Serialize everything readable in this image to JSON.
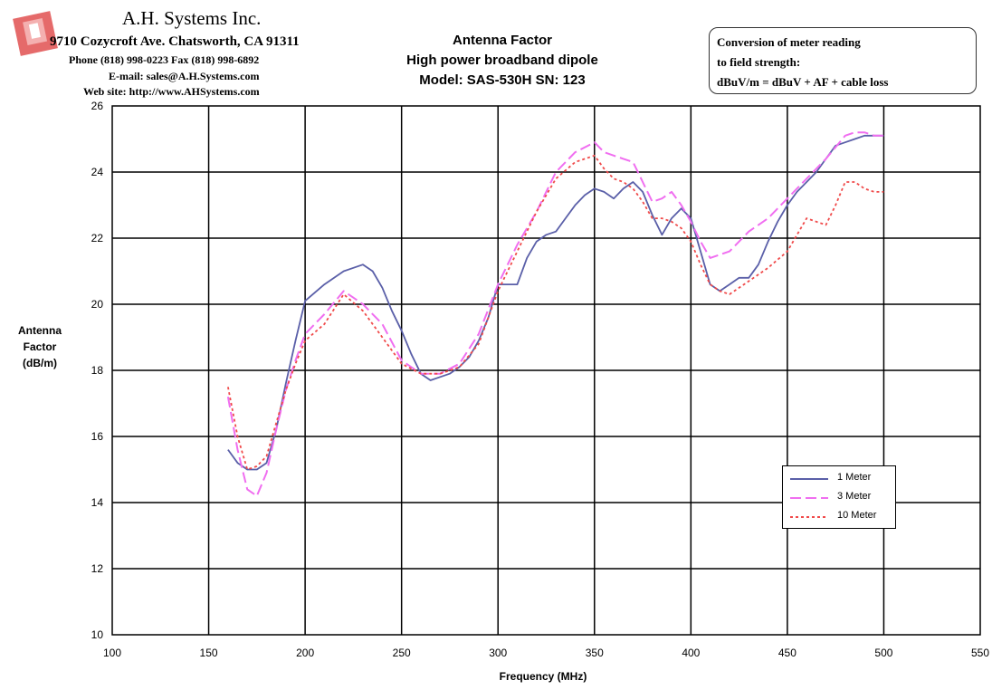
{
  "company": {
    "name": "A.H. Systems Inc.",
    "address": "9710 Cozycroft Ave. Chatsworth, CA 91311",
    "phone": "Phone (818) 998-0223 Fax (818) 998-6892",
    "email": "E-mail: sales@A.H.Systems.com",
    "web": "Web site: http://www.AHSystems.com"
  },
  "title_lines": [
    "Antenna Factor",
    "High power broadband dipole",
    "Model: SAS-530H SN: 123"
  ],
  "conversion_note": [
    "Conversion of meter reading",
    "to field strength:",
    "dBuV/m = dBuV + AF + cable loss"
  ],
  "colors": {
    "logo": "#e05050",
    "series_1m": "#5a5fa8",
    "series_3m": "#f06ef0",
    "series_10m": "#f04a4a"
  },
  "chart_data": {
    "type": "line",
    "title": "",
    "xlabel": "Frequency (MHz)",
    "ylabel": "Antenna Factor (dB/m)",
    "xlim": [
      100,
      550
    ],
    "ylim": [
      10,
      26
    ],
    "x_ticks": [
      "100",
      "150",
      "200",
      "250",
      "300",
      "350",
      "400",
      "450",
      "500",
      "550"
    ],
    "y_ticks": [
      "10",
      "12",
      "14",
      "16",
      "18",
      "20",
      "22",
      "24",
      "26"
    ],
    "grid": true,
    "legend_position": "lower-right",
    "series": [
      {
        "name": "1 Meter",
        "style": "solid",
        "x": [
          160,
          165,
          170,
          175,
          180,
          185,
          190,
          195,
          200,
          210,
          220,
          230,
          235,
          240,
          245,
          250,
          255,
          260,
          265,
          270,
          275,
          280,
          285,
          290,
          295,
          300,
          305,
          310,
          315,
          320,
          325,
          330,
          335,
          340,
          345,
          350,
          355,
          360,
          365,
          370,
          375,
          380,
          385,
          390,
          395,
          400,
          405,
          410,
          415,
          420,
          425,
          430,
          435,
          440,
          445,
          450,
          455,
          460,
          465,
          470,
          475,
          480,
          485,
          490,
          495,
          500
        ],
        "y": [
          15.6,
          15.2,
          15.0,
          15.0,
          15.2,
          16.2,
          17.6,
          18.9,
          20.1,
          20.6,
          21.0,
          21.2,
          21.0,
          20.5,
          19.8,
          19.2,
          18.5,
          17.9,
          17.7,
          17.8,
          17.9,
          18.1,
          18.4,
          18.9,
          19.6,
          20.6,
          20.6,
          20.6,
          21.4,
          21.9,
          22.1,
          22.2,
          22.6,
          23.0,
          23.3,
          23.5,
          23.4,
          23.2,
          23.5,
          23.7,
          23.4,
          22.7,
          22.1,
          22.6,
          22.9,
          22.6,
          21.6,
          20.6,
          20.4,
          20.6,
          20.8,
          20.8,
          21.2,
          21.9,
          22.5,
          23.0,
          23.4,
          23.7,
          24.0,
          24.4,
          24.8,
          24.9,
          25.0,
          25.1,
          25.1,
          25.1
        ]
      },
      {
        "name": "3 Meter",
        "style": "dashed",
        "x": [
          160,
          165,
          170,
          175,
          180,
          185,
          190,
          195,
          200,
          210,
          220,
          230,
          240,
          250,
          260,
          270,
          280,
          290,
          300,
          310,
          320,
          330,
          340,
          350,
          355,
          360,
          365,
          370,
          375,
          380,
          385,
          390,
          395,
          400,
          405,
          410,
          415,
          420,
          425,
          430,
          440,
          450,
          460,
          470,
          480,
          485,
          490,
          495,
          500
        ],
        "y": [
          17.2,
          15.6,
          14.4,
          14.2,
          14.9,
          16.2,
          17.4,
          18.3,
          19.1,
          19.7,
          20.4,
          20.0,
          19.4,
          18.3,
          17.9,
          17.9,
          18.2,
          19.1,
          20.6,
          21.8,
          22.8,
          24.0,
          24.6,
          24.9,
          24.6,
          24.5,
          24.4,
          24.3,
          23.7,
          23.1,
          23.2,
          23.4,
          23.0,
          22.5,
          21.9,
          21.4,
          21.5,
          21.6,
          21.9,
          22.2,
          22.6,
          23.2,
          23.8,
          24.4,
          25.1,
          25.2,
          25.2,
          25.1,
          25.1
        ]
      },
      {
        "name": "10 Meter",
        "style": "dotted",
        "x": [
          160,
          165,
          170,
          175,
          180,
          185,
          190,
          195,
          200,
          210,
          220,
          230,
          240,
          250,
          260,
          270,
          280,
          290,
          300,
          310,
          320,
          330,
          340,
          350,
          355,
          360,
          365,
          370,
          375,
          380,
          385,
          390,
          395,
          400,
          405,
          410,
          415,
          420,
          425,
          430,
          440,
          450,
          460,
          465,
          470,
          475,
          480,
          485,
          490,
          495,
          500
        ],
        "y": [
          17.5,
          16.0,
          15.0,
          15.1,
          15.4,
          16.4,
          17.4,
          18.2,
          18.9,
          19.4,
          20.3,
          19.8,
          19.0,
          18.2,
          17.9,
          17.9,
          18.1,
          18.8,
          20.4,
          21.6,
          22.8,
          23.8,
          24.3,
          24.5,
          24.1,
          23.8,
          23.7,
          23.5,
          23.1,
          22.6,
          22.6,
          22.5,
          22.3,
          21.9,
          21.2,
          20.6,
          20.4,
          20.3,
          20.5,
          20.7,
          21.1,
          21.6,
          22.6,
          22.5,
          22.4,
          23.0,
          23.7,
          23.7,
          23.5,
          23.4,
          23.4
        ]
      }
    ]
  }
}
